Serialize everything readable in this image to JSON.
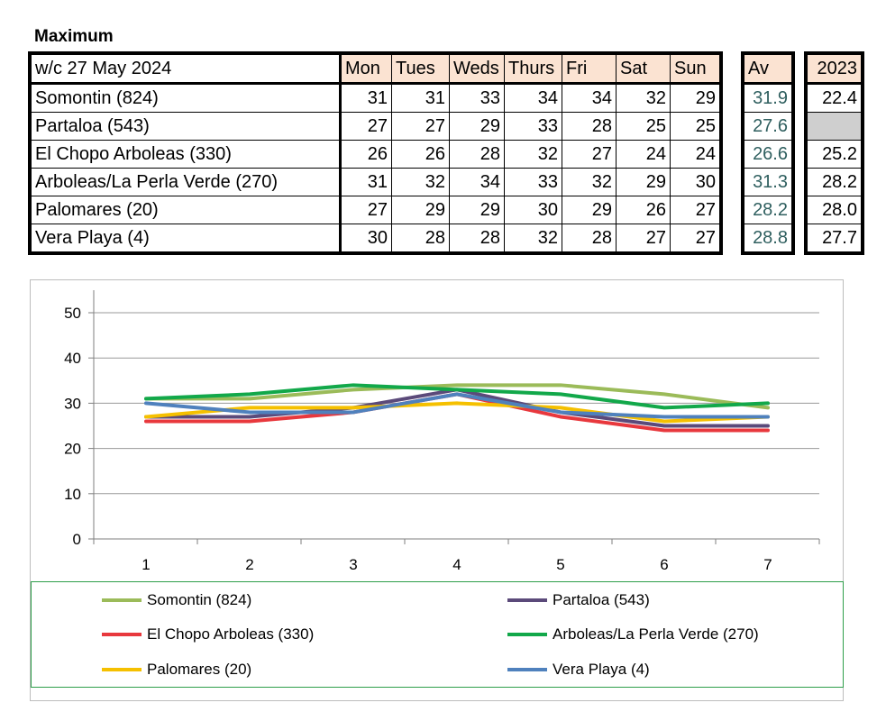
{
  "heading": "Maximum",
  "table": {
    "week_label": "w/c  27 May 2024",
    "days": [
      "Mon",
      "Tues",
      "Weds",
      "Thurs",
      "Fri",
      "Sat",
      "Sun"
    ],
    "av_header": "Av",
    "year_header": "2023",
    "rows": [
      {
        "name": "Somontin (824)",
        "values": [
          "31",
          "31",
          "33",
          "34",
          "34",
          "32",
          "29"
        ],
        "av": "31.9",
        "prev": "22.4"
      },
      {
        "name": "Partaloa (543)",
        "values": [
          "27",
          "27",
          "29",
          "33",
          "28",
          "25",
          "25"
        ],
        "av": "27.6",
        "prev": ""
      },
      {
        "name": "El Chopo  Arboleas (330)",
        "values": [
          "26",
          "26",
          "28",
          "32",
          "27",
          "24",
          "24"
        ],
        "av": "26.6",
        "prev": "25.2"
      },
      {
        "name": "Arboleas/La Perla Verde (270)",
        "values": [
          "31",
          "32",
          "34",
          "33",
          "32",
          "29",
          "30"
        ],
        "av": "31.3",
        "prev": "28.2"
      },
      {
        "name": "Palomares (20)",
        "values": [
          "27",
          "29",
          "29",
          "30",
          "29",
          "26",
          "27"
        ],
        "av": "28.2",
        "prev": "28.0"
      },
      {
        "name": "Vera Playa (4)",
        "values": [
          "30",
          "28",
          "28",
          "32",
          "28",
          "27",
          "27"
        ],
        "av": "28.8",
        "prev": "27.7"
      }
    ]
  },
  "chart_data": {
    "type": "line",
    "x": [
      1,
      2,
      3,
      4,
      5,
      6,
      7
    ],
    "ylim": [
      0,
      50
    ],
    "yticks": [
      "0",
      "10",
      "20",
      "30",
      "40",
      "50"
    ],
    "xticks": [
      "1",
      "2",
      "3",
      "4",
      "5",
      "6",
      "7"
    ],
    "grid": true,
    "legend_position": "bottom",
    "series": [
      {
        "name": "Somontin (824)",
        "color": "#9bbb59",
        "values": [
          31,
          31,
          33,
          34,
          34,
          32,
          29
        ]
      },
      {
        "name": "Partaloa (543)",
        "color": "#5b4a7a",
        "values": [
          27,
          27,
          29,
          33,
          28,
          25,
          25
        ]
      },
      {
        "name": "El Chopo  Arboleas (330)",
        "color": "#e8383d",
        "values": [
          26,
          26,
          28,
          32,
          27,
          24,
          24
        ]
      },
      {
        "name": "Arboleas/La Perla Verde (270)",
        "color": "#12a84a",
        "values": [
          31,
          32,
          34,
          33,
          32,
          29,
          30
        ]
      },
      {
        "name": "Palomares (20)",
        "color": "#f5c000",
        "values": [
          27,
          29,
          29,
          30,
          29,
          26,
          27
        ]
      },
      {
        "name": "Vera Playa (4)",
        "color": "#4f81bd",
        "values": [
          30,
          28,
          28,
          32,
          28,
          27,
          27
        ]
      }
    ]
  }
}
